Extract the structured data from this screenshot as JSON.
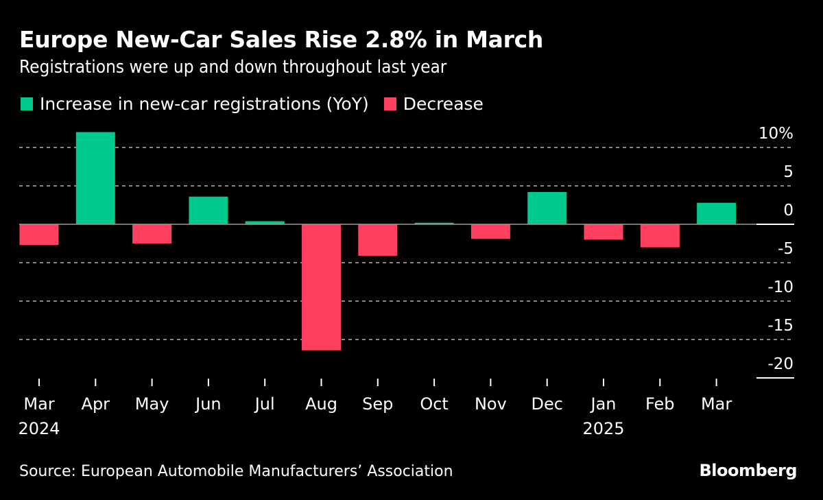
{
  "colors": {
    "increase": "#00c98d",
    "decrease": "#ff405f",
    "text": "#ffffff",
    "grid": "#8a8a8a",
    "background": "#000000"
  },
  "chart_data": {
    "type": "bar",
    "title": "Europe New-Car Sales Rise 2.8% in March",
    "subtitle": "Registrations were up and down throughout last year",
    "legend": [
      {
        "label": "Increase in new-car registrations (YoY)",
        "color": "#00c98d"
      },
      {
        "label": "Decrease",
        "color": "#ff405f"
      }
    ],
    "legend_position": "top-left",
    "categories": [
      "Mar",
      "Apr",
      "May",
      "Jun",
      "Jul",
      "Aug",
      "Sep",
      "Oct",
      "Nov",
      "Dec",
      "Jan",
      "Feb",
      "Mar"
    ],
    "category_sublabels": [
      "2024",
      "",
      "",
      "",
      "",
      "",
      "",
      "",
      "",
      "",
      "2025",
      "",
      ""
    ],
    "values": [
      -2.7,
      12.0,
      -2.5,
      3.6,
      0.4,
      -16.4,
      -4.1,
      0.2,
      -1.9,
      4.2,
      -2.0,
      -3.0,
      2.8
    ],
    "xlabel": "",
    "ylabel": "",
    "ylim": [
      -20,
      10
    ],
    "yticks": [
      10,
      5,
      0,
      -5,
      -10,
      -15,
      -20
    ],
    "ytick_labels": [
      "10%",
      "5",
      "0",
      "-5",
      "-10",
      "-15",
      "-20"
    ],
    "y_axis_side": "right",
    "grid": true
  },
  "footer": {
    "source": "Source: European Automobile Manufacturers’ Association",
    "brand": "Bloomberg"
  }
}
